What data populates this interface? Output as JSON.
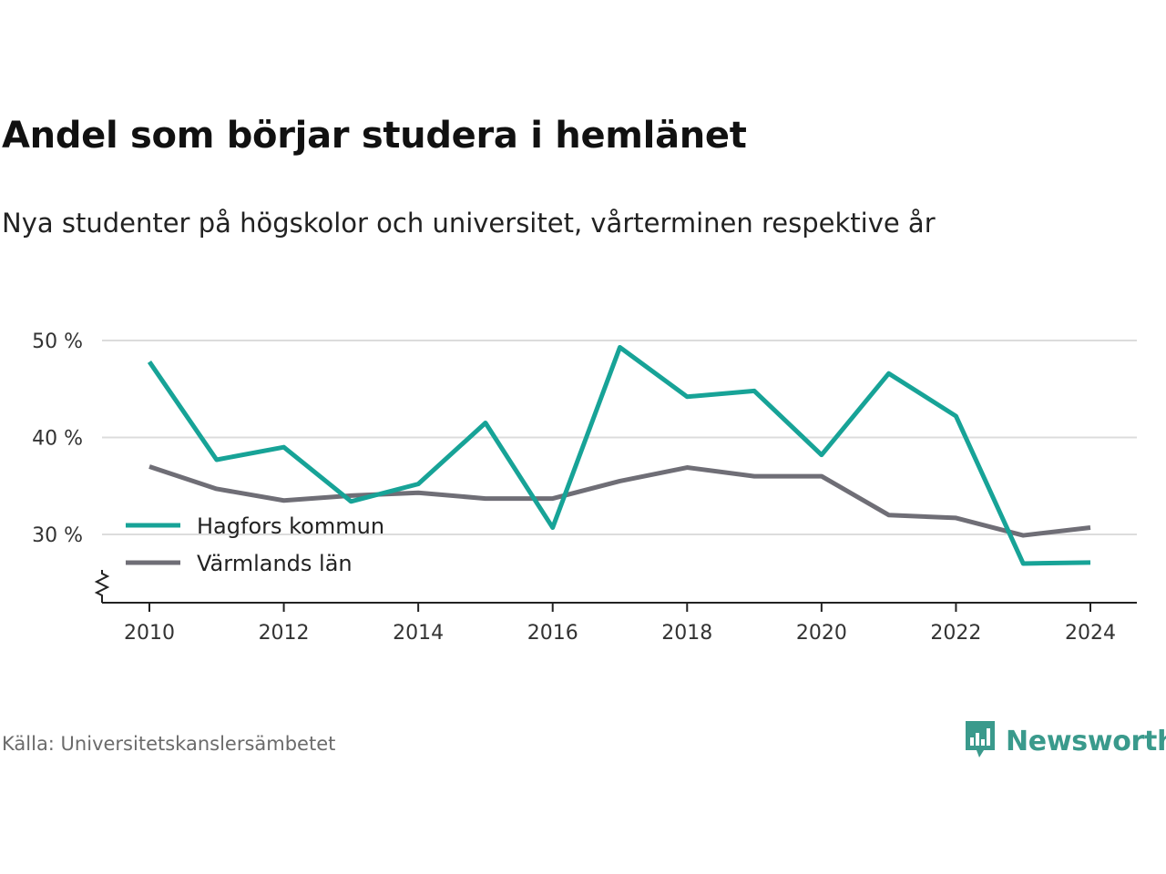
{
  "title": "Andel som börjar studera i hemlänet",
  "subtitle": "Nya studenter på högskolor och universitet, vårterminen respektive år",
  "source": "Källa: Universitetskanslersämbetet",
  "brand": {
    "name": "Newsworthy",
    "color": "#3a9a8c",
    "icon": "bar-chart-speech-bubble-icon"
  },
  "chart_data": {
    "type": "line",
    "title": "Andel som börjar studera i hemlänet",
    "subtitle": "Nya studenter på högskolor och universitet, vårterminen respektive år",
    "x": [
      2010,
      2011,
      2012,
      2013,
      2014,
      2015,
      2016,
      2017,
      2018,
      2019,
      2020,
      2021,
      2022,
      2023,
      2024
    ],
    "x_ticks": [
      "2010",
      "2012",
      "2014",
      "2016",
      "2018",
      "2020",
      "2022",
      "2024"
    ],
    "y_ticks": [
      {
        "value": 30,
        "label": "30 %"
      },
      {
        "value": 40,
        "label": "40 %"
      },
      {
        "value": 50,
        "label": "50 %"
      }
    ],
    "ylim": [
      23,
      50
    ],
    "y_axis_break": true,
    "grid": true,
    "legend_position": "bottom-left",
    "series": [
      {
        "name": "Hagfors kommun",
        "color": "#17a397",
        "values": [
          47.8,
          37.7,
          39.0,
          33.4,
          35.2,
          41.5,
          30.7,
          49.3,
          44.2,
          44.8,
          38.2,
          46.6,
          42.2,
          27.0,
          27.1
        ]
      },
      {
        "name": "Värmlands län",
        "color": "#6f6e76",
        "values": [
          37.0,
          34.7,
          33.5,
          34.0,
          34.3,
          33.7,
          33.7,
          35.5,
          36.9,
          36.0,
          36.0,
          32.0,
          31.7,
          29.9,
          30.7
        ]
      }
    ]
  }
}
